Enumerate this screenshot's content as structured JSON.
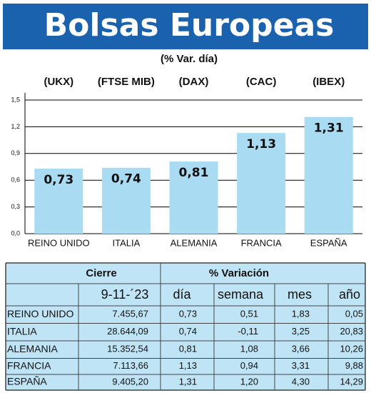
{
  "chart_data": {
    "type": "bar",
    "title": "Bolsas Europeas",
    "subtitle": "(% Var. día)",
    "index_labels": [
      "(UKX)",
      "(FTSE MIB)",
      "(DAX)",
      "(CAC)",
      "(IBEX)"
    ],
    "categories": [
      "REINO UNIDO",
      "ITALIA",
      "ALEMANIA",
      "FRANCIA",
      "ESPAÑA"
    ],
    "values": [
      0.73,
      0.74,
      0.81,
      1.13,
      1.31
    ],
    "value_labels": [
      "0,73",
      "0,74",
      "0,81",
      "1,13",
      "1,31"
    ],
    "color": "#a9dcf3",
    "ylim": [
      0,
      1.5
    ],
    "yticks": [
      {
        "value": 0,
        "label": "0,0"
      },
      {
        "value": 0.3,
        "label": "0,3"
      },
      {
        "value": 0.6,
        "label": "0,6"
      },
      {
        "value": 0.9,
        "label": "0,9"
      },
      {
        "value": 1.2,
        "label": "1,2"
      },
      {
        "value": 1.5,
        "label": "1,5"
      }
    ],
    "grid": true
  },
  "table": {
    "group_headers": [
      "Cierre",
      "% Variación"
    ],
    "columns": [
      "9-11-´23",
      "día",
      "semana",
      "mes",
      "año"
    ],
    "rows": [
      [
        "REINO UNIDO",
        "7.455,67",
        "0,73",
        "0,51",
        "1,83",
        "0,05"
      ],
      [
        "ITALIA",
        "28.644,09",
        "0,74",
        "-0,11",
        "3,25",
        "20,83"
      ],
      [
        "ALEMANIA",
        "15.352,54",
        "0,81",
        "1,08",
        "3,66",
        "10,26"
      ],
      [
        "FRANCIA",
        "7.113,66",
        "1,13",
        "0,94",
        "3,31",
        "9,88"
      ],
      [
        "ESPAÑA",
        "9.405,20",
        "1,31",
        "1,20",
        "4,30",
        "14,29"
      ]
    ]
  }
}
